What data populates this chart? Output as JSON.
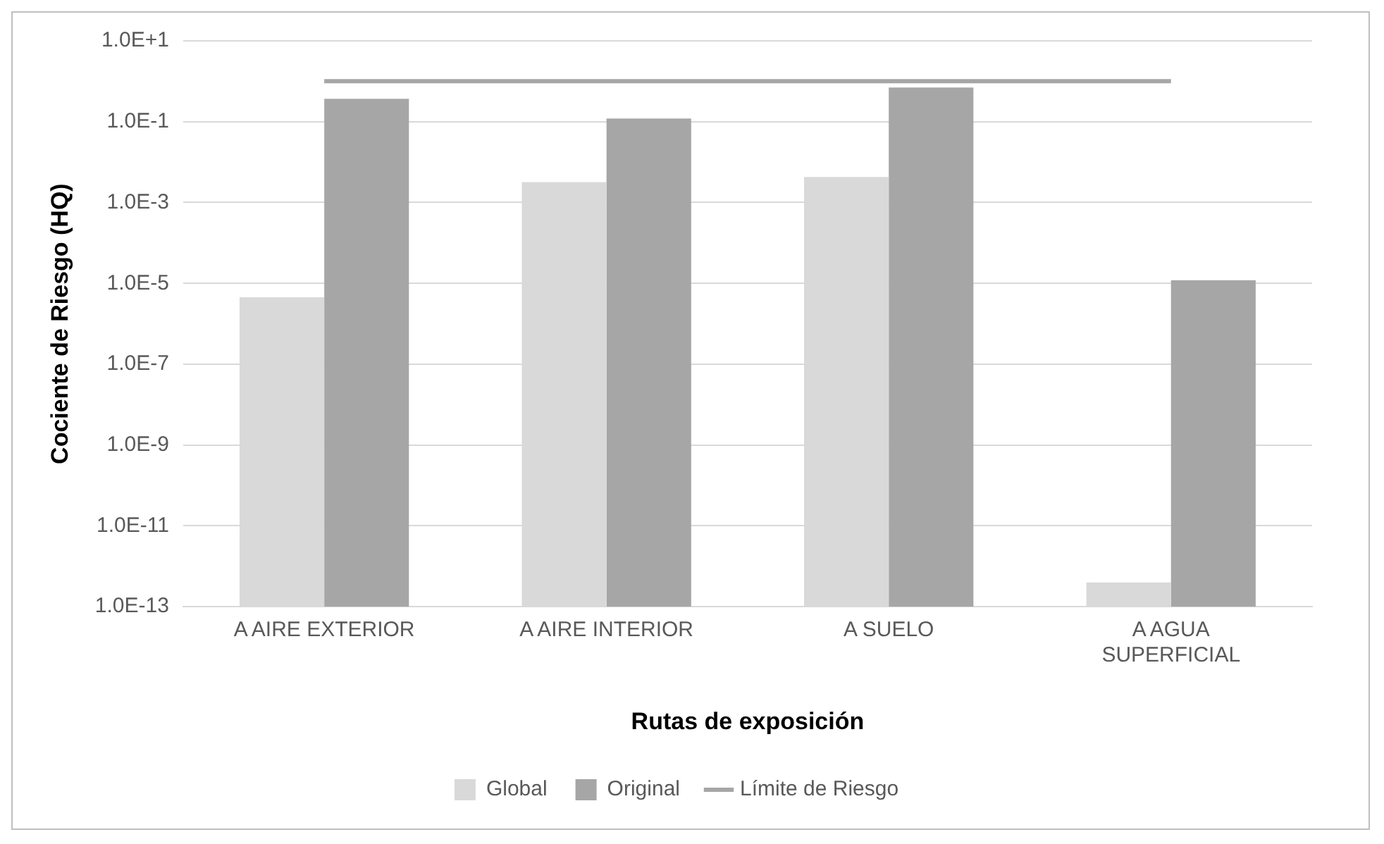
{
  "chart_data": {
    "type": "bar",
    "xlabel": "Rutas de exposición",
    "ylabel": "Cociente de Riesgo (HQ)",
    "categories": [
      "A AIRE EXTERIOR",
      "A AIRE INTERIOR",
      "A SUELO",
      "A AGUA SUPERFICIAL"
    ],
    "series": [
      {
        "name": "Global",
        "color": "#d9d9d9",
        "values": [
          4.5e-06,
          0.0032,
          0.0043,
          4e-13
        ]
      },
      {
        "name": "Original",
        "color": "#a6a6a6",
        "values": [
          0.37,
          0.12,
          0.7,
          1.2e-05
        ]
      },
      {
        "name": "Límite de Riesgo",
        "type": "line",
        "color": "#a6a6a6",
        "values": [
          1,
          1,
          1,
          1
        ],
        "marker": "none",
        "line_style": "solid"
      }
    ],
    "log": "y",
    "ylim": [
      1e-13,
      10
    ],
    "yticks": [
      {
        "value": 10,
        "label": "1.0E+1"
      },
      {
        "value": 0.1,
        "label": "1.0E-1"
      },
      {
        "value": 0.001,
        "label": "1.0E-3"
      },
      {
        "value": 1e-05,
        "label": "1.0E-5"
      },
      {
        "value": 1e-07,
        "label": "1.0E-7"
      },
      {
        "value": 1e-09,
        "label": "1.0E-9"
      },
      {
        "value": 1e-11,
        "label": "1.0E-11"
      },
      {
        "value": 1e-13,
        "label": "1.0E-13"
      }
    ],
    "grid": "y",
    "legend": "bottom"
  }
}
